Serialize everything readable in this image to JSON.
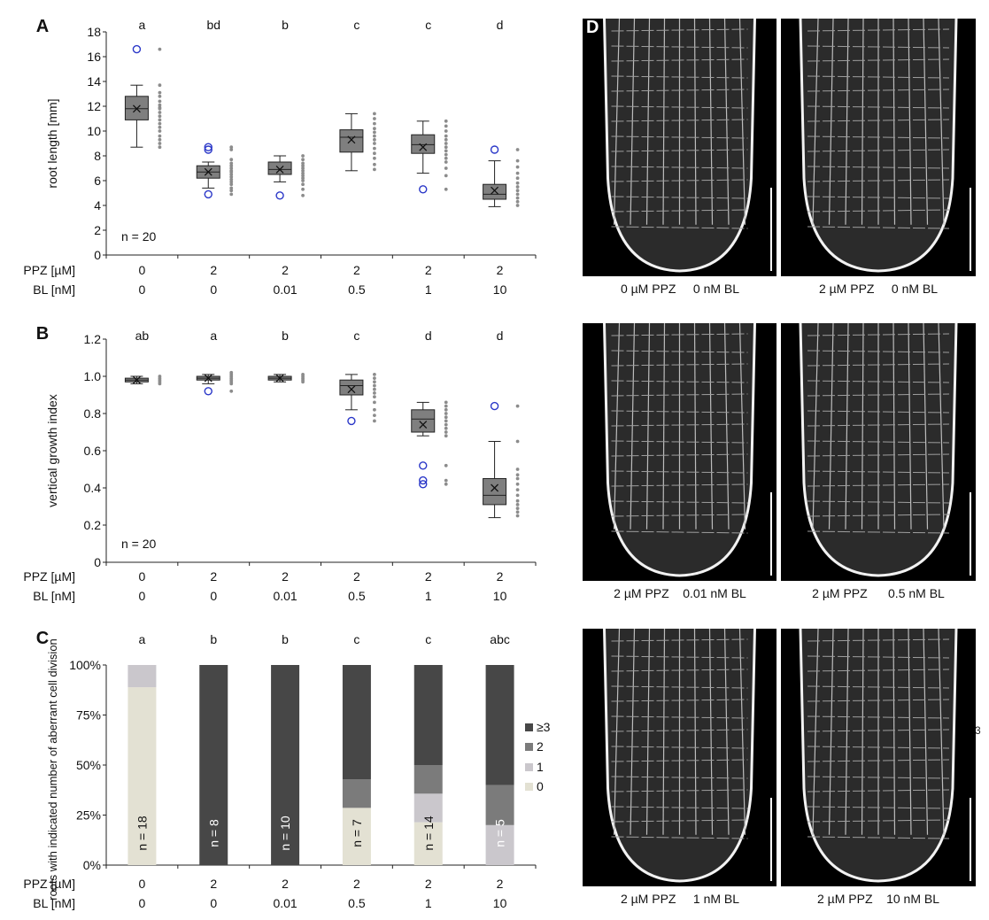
{
  "treatment_rows": {
    "ppz_label": "PPZ [µM]",
    "bl_label": "BL [nM]",
    "ppz_values": [
      "0",
      "2",
      "2",
      "2",
      "2",
      "2"
    ],
    "bl_values": [
      "0",
      "0",
      "0.01",
      "0.5",
      "1",
      "10"
    ]
  },
  "chart_data": [
    {
      "panel": "A",
      "type": "box",
      "ylabel": "root length [mm]",
      "ylim": [
        0,
        18
      ],
      "yticks": [
        0,
        2,
        4,
        6,
        8,
        10,
        12,
        14,
        16,
        18
      ],
      "sample_note": "n = 20",
      "significance": [
        "a",
        "bd",
        "b",
        "c",
        "c",
        "d"
      ],
      "boxes": [
        {
          "whisker_low": 8.7,
          "q1": 10.9,
          "median": 11.8,
          "q3": 12.8,
          "whisker_high": 13.7,
          "mean": 11.8,
          "outliers": [
            16.6
          ]
        },
        {
          "whisker_low": 5.4,
          "q1": 6.2,
          "median": 6.7,
          "q3": 7.2,
          "whisker_high": 7.5,
          "mean": 6.7,
          "outliers": [
            8.7,
            8.5,
            4.9
          ]
        },
        {
          "whisker_low": 5.9,
          "q1": 6.5,
          "median": 6.9,
          "q3": 7.5,
          "whisker_high": 8.0,
          "mean": 6.9,
          "outliers": [
            4.8
          ]
        },
        {
          "whisker_low": 6.8,
          "q1": 8.3,
          "median": 9.5,
          "q3": 10.1,
          "whisker_high": 11.4,
          "mean": 9.3,
          "outliers": []
        },
        {
          "whisker_low": 6.6,
          "q1": 8.2,
          "median": 8.9,
          "q3": 9.7,
          "whisker_high": 10.8,
          "mean": 8.7,
          "outliers": [
            5.3
          ]
        },
        {
          "whisker_low": 3.9,
          "q1": 4.5,
          "median": 4.9,
          "q3": 5.7,
          "whisker_high": 7.6,
          "mean": 5.2,
          "outliers": [
            8.5
          ]
        }
      ],
      "points": [
        [
          16.6,
          13.7,
          13.1,
          12.8,
          12.4,
          12.1,
          11.9,
          11.8,
          11.5,
          11.2,
          10.9,
          10.6,
          10.3,
          10.0,
          9.6,
          9.3,
          9.0,
          8.7
        ],
        [
          8.7,
          8.5,
          7.7,
          7.4,
          7.2,
          7.0,
          6.8,
          6.7,
          6.5,
          6.3,
          6.1,
          5.9,
          5.7,
          5.4,
          5.2,
          4.9
        ],
        [
          8.0,
          7.7,
          7.4,
          7.2,
          7.0,
          6.8,
          6.6,
          6.4,
          6.2,
          6.0,
          5.7,
          5.3,
          4.8
        ],
        [
          11.4,
          11.0,
          10.6,
          10.2,
          9.9,
          9.6,
          9.3,
          9.0,
          8.6,
          8.2,
          7.8,
          7.3,
          6.9
        ],
        [
          10.8,
          10.4,
          10.0,
          9.6,
          9.3,
          9.0,
          8.7,
          8.4,
          8.1,
          7.8,
          7.5,
          7.0,
          6.4,
          5.3
        ],
        [
          8.5,
          7.6,
          7.1,
          6.6,
          6.2,
          5.8,
          5.5,
          5.2,
          4.9,
          4.6,
          4.3,
          4.0
        ]
      ]
    },
    {
      "panel": "B",
      "type": "box",
      "ylabel": "vertical growth index",
      "ylim": [
        0,
        1.2
      ],
      "yticks": [
        0,
        0.2,
        0.4,
        0.6,
        0.8,
        1.0,
        1.2
      ],
      "ytick_labels": [
        "0",
        "0.2",
        "0.4",
        "0.6",
        "0.8",
        "1.0",
        "1.2"
      ],
      "sample_note": "n = 20",
      "significance": [
        "ab",
        "a",
        "b",
        "c",
        "d",
        "d"
      ],
      "boxes": [
        {
          "whisker_low": 0.96,
          "q1": 0.97,
          "median": 0.98,
          "q3": 0.99,
          "whisker_high": 1.0,
          "mean": 0.98,
          "outliers": []
        },
        {
          "whisker_low": 0.96,
          "q1": 0.98,
          "median": 0.99,
          "q3": 1.0,
          "whisker_high": 1.01,
          "mean": 0.99,
          "outliers": [
            0.92
          ]
        },
        {
          "whisker_low": 0.97,
          "q1": 0.98,
          "median": 0.99,
          "q3": 1.0,
          "whisker_high": 1.01,
          "mean": 0.99,
          "outliers": []
        },
        {
          "whisker_low": 0.82,
          "q1": 0.9,
          "median": 0.95,
          "q3": 0.98,
          "whisker_high": 1.01,
          "mean": 0.93,
          "outliers": [
            0.76
          ]
        },
        {
          "whisker_low": 0.68,
          "q1": 0.7,
          "median": 0.77,
          "q3": 0.82,
          "whisker_high": 0.86,
          "mean": 0.74,
          "outliers": [
            0.52,
            0.44,
            0.42
          ]
        },
        {
          "whisker_low": 0.24,
          "q1": 0.31,
          "median": 0.36,
          "q3": 0.45,
          "whisker_high": 0.65,
          "mean": 0.4,
          "outliers": [
            0.84
          ]
        }
      ],
      "points": [
        [
          1.0,
          0.99,
          0.98,
          0.97,
          0.96
        ],
        [
          1.02,
          1.01,
          1.0,
          0.99,
          0.98,
          0.97,
          0.96,
          0.92
        ],
        [
          1.01,
          1.0,
          0.99,
          0.98,
          0.97
        ],
        [
          1.01,
          0.99,
          0.97,
          0.95,
          0.93,
          0.91,
          0.89,
          0.86,
          0.82,
          0.79,
          0.76
        ],
        [
          0.86,
          0.84,
          0.82,
          0.8,
          0.78,
          0.76,
          0.74,
          0.72,
          0.7,
          0.68,
          0.52,
          0.44,
          0.42
        ],
        [
          0.84,
          0.65,
          0.5,
          0.47,
          0.45,
          0.42,
          0.39,
          0.36,
          0.33,
          0.31,
          0.29,
          0.27,
          0.25
        ]
      ]
    },
    {
      "panel": "C",
      "type": "stacked-bar",
      "ylabel": "roots with indicated number of aberrant cell division",
      "ylim": [
        0,
        100
      ],
      "ytick_labels": [
        "0%",
        "25%",
        "50%",
        "75%",
        "100%"
      ],
      "significance": [
        "a",
        "b",
        "b",
        "c",
        "c",
        "abc"
      ],
      "n_labels": [
        "n = 18",
        "n = 8",
        "n = 10",
        "n = 7",
        "n = 14",
        "n = 5"
      ],
      "legend": [
        "≥3",
        "2",
        "1",
        "0"
      ],
      "legend_position": "right",
      "series": [
        {
          "name": "0",
          "values": [
            88.9,
            0,
            0,
            28.6,
            21.4,
            0
          ]
        },
        {
          "name": "1",
          "values": [
            11.1,
            0,
            0,
            0,
            14.3,
            20
          ]
        },
        {
          "name": "2",
          "values": [
            0,
            0,
            0,
            14.3,
            14.3,
            20
          ]
        },
        {
          "name": "≥3",
          "values": [
            0,
            100,
            100,
            57.1,
            50,
            60
          ]
        }
      ]
    }
  ],
  "colors": {
    "box_fill": "#7f7f7f",
    "points": "#8c8c8c",
    "outlier": "#2a37c8",
    "seg_0": "#e3e1d3",
    "seg_1": "#cac7cc",
    "seg_2": "#7b7b7b",
    "seg_3": "#474747"
  },
  "panel_letters": {
    "A": "A",
    "B": "B",
    "C": "C",
    "D": "D"
  },
  "micrographs": {
    "captions": [
      "0 µM PPZ     0 nM BL",
      "2 µM PPZ     0 nM BL",
      "2 µM PPZ    0.01 nM BL",
      "2 µM PPZ      0.5 nM BL",
      "2 µM PPZ     1 nM BL",
      "2 µM PPZ    10 nM BL"
    ]
  },
  "stray_text": "3"
}
